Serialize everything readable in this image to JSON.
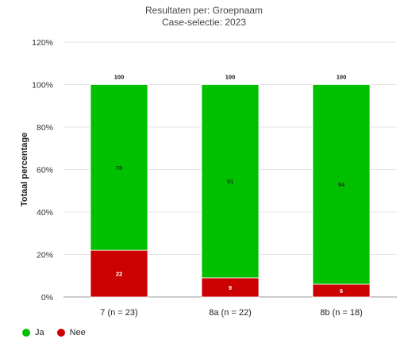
{
  "chart_data": {
    "type": "bar",
    "stacked": true,
    "title": "Resultaten per: Groepnaam",
    "subtitle": "Case-selectie: 2023",
    "ylabel": "Totaal percentage",
    "xlabel": "",
    "ylim": [
      0,
      120
    ],
    "yticks": [
      "0%",
      "20%",
      "40%",
      "60%",
      "80%",
      "100%",
      "120%"
    ],
    "categories": [
      "7 (n = 23)",
      "8a (n = 22)",
      "8b (n = 18)"
    ],
    "series": [
      {
        "name": "Ja",
        "color": "#00c000",
        "values": [
          78,
          91,
          94
        ]
      },
      {
        "name": "Nee",
        "color": "#cc0000",
        "values": [
          22,
          9,
          6
        ]
      }
    ],
    "totals": [
      100,
      100,
      100
    ],
    "legend_position": "bottom-left",
    "grid": true
  }
}
